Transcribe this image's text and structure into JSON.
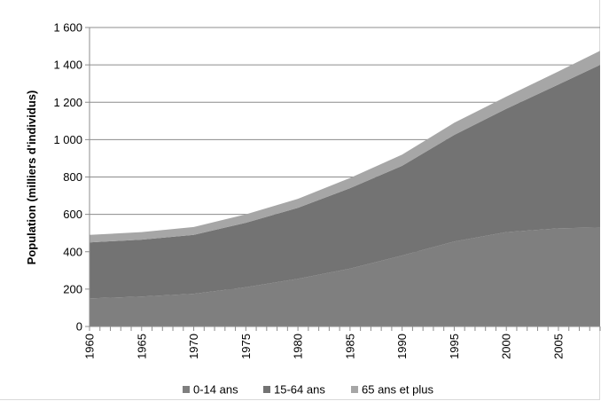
{
  "chart_data": {
    "type": "area",
    "stacked": true,
    "title": "",
    "xlabel": "",
    "ylabel": "Population (milliers d'individus)",
    "ylim": [
      0,
      1600
    ],
    "xlim": [
      1960,
      2009
    ],
    "x_ticks": [
      "1960",
      "1965",
      "1970",
      "1975",
      "1980",
      "1985",
      "1990",
      "1995",
      "2000",
      "2005"
    ],
    "y_ticks": [
      "0",
      "200",
      "400",
      "600",
      "800",
      "1 000",
      "1 200",
      "1 400",
      "1 600"
    ],
    "grid": "horizontal",
    "legend_position": "bottom",
    "x": [
      1960,
      1965,
      1970,
      1975,
      1980,
      1985,
      1990,
      1995,
      2000,
      2005,
      2009
    ],
    "series": [
      {
        "name": "0-14 ans",
        "color": "#7f7f7f",
        "values": [
          150,
          160,
          175,
          210,
          255,
          310,
          380,
          455,
          505,
          525,
          530
        ]
      },
      {
        "name": "15-64 ans",
        "color": "#737373",
        "values": [
          300,
          305,
          315,
          345,
          380,
          430,
          480,
          570,
          660,
          770,
          870
        ]
      },
      {
        "name": "65 ans et plus",
        "color": "#a6a6a6",
        "values": [
          40,
          40,
          42,
          45,
          48,
          55,
          60,
          65,
          65,
          70,
          75
        ]
      }
    ]
  }
}
